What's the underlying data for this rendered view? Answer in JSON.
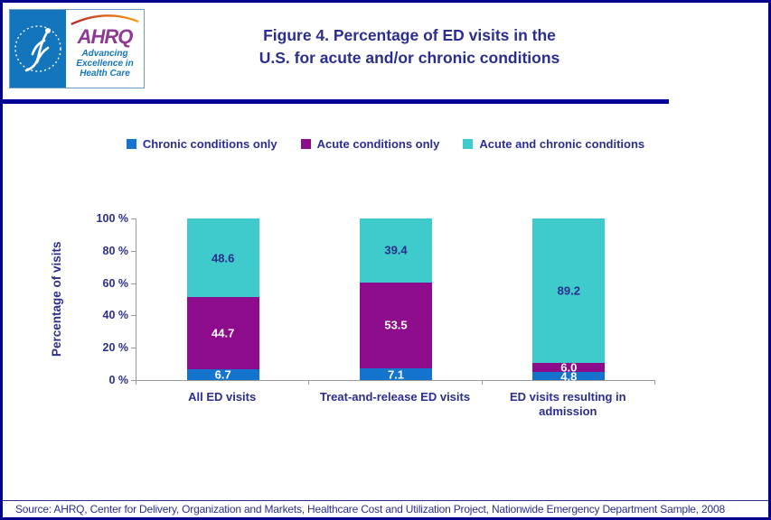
{
  "header": {
    "title_line1": "Figure 4. Percentage of ED visits in the",
    "title_line2": "U.S. for acute and/or chronic conditions"
  },
  "logo": {
    "seal_icon": "hhs-eagle-seal",
    "ahrq_acronym": "AHRQ",
    "tagline": [
      "Advancing",
      "Excellence in",
      "Health Care"
    ]
  },
  "chart_data": {
    "type": "bar",
    "stacked": true,
    "title": "Figure 4. Percentage of ED visits in the U.S. for acute and/or chronic conditions",
    "ylabel": "Percentage of visits",
    "xlabel": "",
    "ylim": [
      0,
      100
    ],
    "yticks": [
      "0 %",
      "20 %",
      "40 %",
      "60 %",
      "80 %",
      "100 %"
    ],
    "grid": false,
    "legend_position": "top",
    "categories": [
      "All ED visits",
      "Treat-and-release ED visits",
      "ED visits resulting in admission"
    ],
    "series": [
      {
        "name": "Chronic conditions only",
        "color": "#1473CC",
        "label_color": "#FFFFFF",
        "values": [
          6.7,
          7.1,
          4.8
        ],
        "labels": [
          "6.7",
          "7.1",
          "4.8"
        ]
      },
      {
        "name": "Acute conditions only",
        "color": "#8C0C8C",
        "label_color": "#FFFFFF",
        "values": [
          44.7,
          53.5,
          6.0
        ],
        "labels": [
          "44.7",
          "53.5",
          "6.0"
        ]
      },
      {
        "name": "Acute and chronic conditions",
        "color": "#3FCBCB",
        "label_color": "#2B2E8F",
        "values": [
          48.6,
          39.4,
          89.2
        ],
        "labels": [
          "48.6",
          "39.4",
          "89.2"
        ]
      }
    ]
  },
  "source": "Source: AHRQ, Center for Delivery, Organization and Markets, Healthcare Cost and Utilization Project, Nationwide Emergency Department Sample, 2008",
  "colors": {
    "navy_text": "#2B2E8F",
    "outer_border": "#00008B",
    "separator": "#000099",
    "hhs_blue": "#1375BC",
    "ahrq_purple": "#8D3A94",
    "axis_gray": "#999999",
    "arc_red": "#C22126",
    "arc_orange": "#F6A01A"
  }
}
